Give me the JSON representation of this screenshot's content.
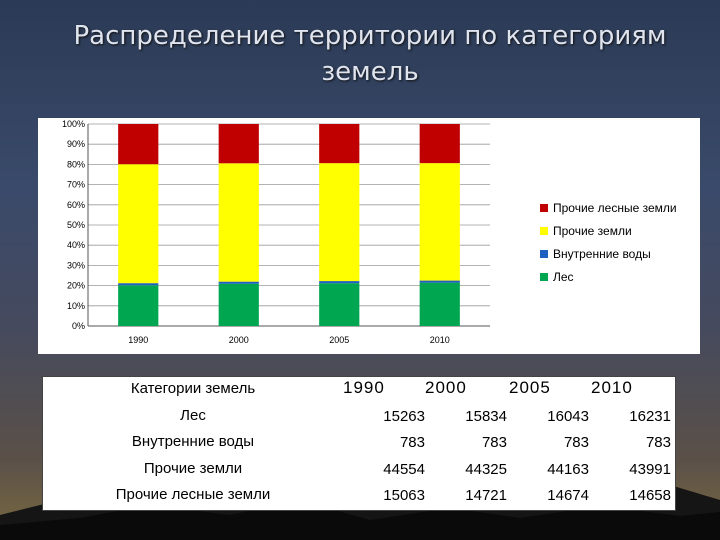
{
  "slide": {
    "title_line1": "Распределение территории по категориям",
    "title_line2": "земель"
  },
  "chart_data": {
    "type": "bar",
    "stacked": "percent",
    "categories": [
      "1990",
      "2000",
      "2005",
      "2010"
    ],
    "series": [
      {
        "name": "Лес",
        "color": "#00a650",
        "values": [
          15263,
          15834,
          16043,
          16231
        ]
      },
      {
        "name": "Внутренние воды",
        "color": "#1f5fc0",
        "values": [
          783,
          783,
          783,
          783
        ]
      },
      {
        "name": "Прочие земли",
        "color": "#ffff00",
        "values": [
          44554,
          44325,
          44163,
          43991
        ]
      },
      {
        "name": "Прочие лесные земли",
        "color": "#c00000",
        "values": [
          15063,
          14721,
          14674,
          14658
        ]
      }
    ],
    "y_ticks": [
      "0%",
      "10%",
      "20%",
      "30%",
      "40%",
      "50%",
      "60%",
      "70%",
      "80%",
      "90%",
      "100%"
    ],
    "ylim": [
      0,
      100
    ],
    "grid": true,
    "legend_position": "right"
  },
  "table": {
    "header": {
      "label": "Категории земель",
      "years": [
        "1990",
        "2000",
        "2005",
        "2010"
      ]
    },
    "rows": [
      {
        "label": "Лес",
        "values": [
          "15263",
          "15834",
          "16043",
          "16231"
        ]
      },
      {
        "label": "Внутренние воды",
        "values": [
          "783",
          "783",
          "783",
          "783"
        ]
      },
      {
        "label": "Прочие земли",
        "values": [
          "44554",
          "44325",
          "44163",
          "43991"
        ]
      },
      {
        "label": "Прочие лесные земли",
        "values": [
          "15063",
          "14721",
          "14674",
          "14658"
        ]
      }
    ]
  }
}
